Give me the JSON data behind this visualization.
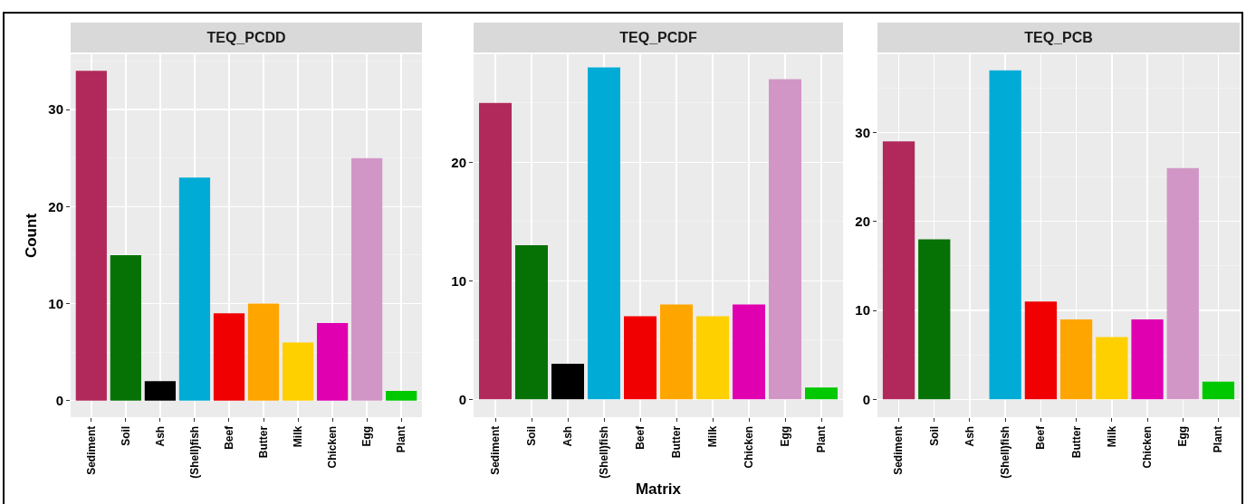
{
  "chart_data": [
    {
      "type": "bar",
      "title": "TEQ_PCDD",
      "ylabel": "Count",
      "categories": [
        "Sediment",
        "Soil",
        "Ash",
        "(Shell)fish",
        "Beef",
        "Butter",
        "Milk",
        "Chicken",
        "Egg",
        "Plant"
      ],
      "values": [
        34,
        15,
        2,
        23,
        9,
        10,
        6,
        8,
        25,
        1
      ],
      "colors": [
        "#b0295a",
        "#067206",
        "#000000",
        "#00acd6",
        "#f00000",
        "#ffa500",
        "#ffd000",
        "#e000b0",
        "#d196c6",
        "#00c800"
      ],
      "ylim": [
        -1.7,
        35.7
      ],
      "yticks": [
        0,
        10,
        20,
        30
      ],
      "grid": true
    },
    {
      "type": "bar",
      "title": "TEQ_PCDF",
      "xlabel": "Matrix",
      "categories": [
        "Sediment",
        "Soil",
        "Ash",
        "(Shell)fish",
        "Beef",
        "Butter",
        "Milk",
        "Chicken",
        "Egg",
        "Plant"
      ],
      "values": [
        25,
        13,
        3,
        28,
        7,
        8,
        7,
        8,
        27,
        1
      ],
      "colors": [
        "#b0295a",
        "#067206",
        "#000000",
        "#00acd6",
        "#f00000",
        "#ffa500",
        "#ffd000",
        "#e000b0",
        "#d196c6",
        "#00c800"
      ],
      "ylim": [
        -1.5,
        29.1
      ],
      "yticks": [
        0,
        10,
        20
      ],
      "grid": true
    },
    {
      "type": "bar",
      "title": "TEQ_PCB",
      "categories": [
        "Sediment",
        "Soil",
        "Ash",
        "(Shell)fish",
        "Beef",
        "Butter",
        "Milk",
        "Chicken",
        "Egg",
        "Plant"
      ],
      "values": [
        29,
        18,
        0,
        37,
        11,
        9,
        7,
        9,
        26,
        2
      ],
      "colors": [
        "#b0295a",
        "#067206",
        "#000000",
        "#00acd6",
        "#f00000",
        "#ffa500",
        "#ffd000",
        "#e000b0",
        "#d196c6",
        "#00c800"
      ],
      "ylim": [
        -2.0,
        38.8
      ],
      "yticks": [
        0,
        10,
        20,
        30
      ],
      "grid": true
    }
  ]
}
